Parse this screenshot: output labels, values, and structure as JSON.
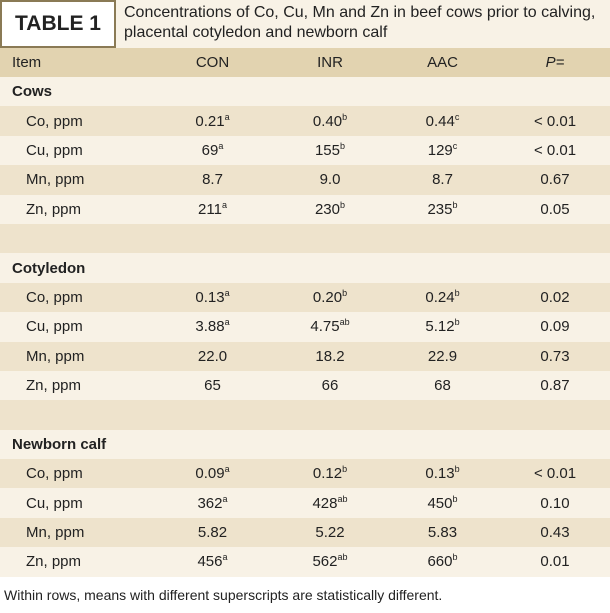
{
  "header": {
    "label": "TABLE 1",
    "title": "Concentrations of Co, Cu, Mn and Zn in beef cows prior to calving, placental cotyledon and newborn calf"
  },
  "table": {
    "columns": [
      "Item",
      "CON",
      "INR",
      "AAC",
      "P="
    ],
    "sections": [
      {
        "label": "Cows",
        "rows": [
          {
            "item": "Co, ppm",
            "cells": [
              {
                "value": "0.21",
                "sup": "a"
              },
              {
                "value": "0.40",
                "sup": "b"
              },
              {
                "value": "0.44",
                "sup": "c"
              }
            ],
            "p": "< 0.01"
          },
          {
            "item": "Cu, ppm",
            "cells": [
              {
                "value": "69",
                "sup": "a"
              },
              {
                "value": "155",
                "sup": "b"
              },
              {
                "value": "129",
                "sup": "c"
              }
            ],
            "p": "< 0.01"
          },
          {
            "item": "Mn, ppm",
            "cells": [
              {
                "value": "8.7"
              },
              {
                "value": "9.0"
              },
              {
                "value": "8.7"
              }
            ],
            "p": "0.67"
          },
          {
            "item": "Zn, ppm",
            "cells": [
              {
                "value": "211",
                "sup": "a"
              },
              {
                "value": "230",
                "sup": "b"
              },
              {
                "value": "235",
                "sup": "b"
              }
            ],
            "p": "0.05"
          }
        ]
      },
      {
        "label": "Cotyledon",
        "rows": [
          {
            "item": "Co, ppm",
            "cells": [
              {
                "value": "0.13",
                "sup": "a"
              },
              {
                "value": "0.20",
                "sup": "b"
              },
              {
                "value": "0.24",
                "sup": "b"
              }
            ],
            "p": "0.02"
          },
          {
            "item": "Cu, ppm",
            "cells": [
              {
                "value": "3.88",
                "sup": "a"
              },
              {
                "value": "4.75",
                "sup": "ab"
              },
              {
                "value": "5.12",
                "sup": "b"
              }
            ],
            "p": "0.09"
          },
          {
            "item": "Mn, ppm",
            "cells": [
              {
                "value": "22.0"
              },
              {
                "value": "18.2"
              },
              {
                "value": "22.9"
              }
            ],
            "p": "0.73"
          },
          {
            "item": "Zn, ppm",
            "cells": [
              {
                "value": "65"
              },
              {
                "value": "66"
              },
              {
                "value": "68"
              }
            ],
            "p": "0.87"
          }
        ]
      },
      {
        "label": "Newborn calf",
        "rows": [
          {
            "item": "Co, ppm",
            "cells": [
              {
                "value": "0.09",
                "sup": "a"
              },
              {
                "value": "0.12",
                "sup": "b"
              },
              {
                "value": "0.13",
                "sup": "b"
              }
            ],
            "p": "< 0.01"
          },
          {
            "item": "Cu, ppm",
            "cells": [
              {
                "value": "362",
                "sup": "a"
              },
              {
                "value": "428",
                "sup": "ab"
              },
              {
                "value": "450",
                "sup": "b"
              }
            ],
            "p": "0.10"
          },
          {
            "item": "Mn, ppm",
            "cells": [
              {
                "value": "5.82"
              },
              {
                "value": "5.22"
              },
              {
                "value": "5.83"
              }
            ],
            "p": "0.43"
          },
          {
            "item": "Zn, ppm",
            "cells": [
              {
                "value": "456",
                "sup": "a"
              },
              {
                "value": "562",
                "sup": "ab"
              },
              {
                "value": "660",
                "sup": "b"
              }
            ],
            "p": "0.01"
          }
        ]
      }
    ]
  },
  "footnote": "Within rows, means with different superscripts are statistically different."
}
